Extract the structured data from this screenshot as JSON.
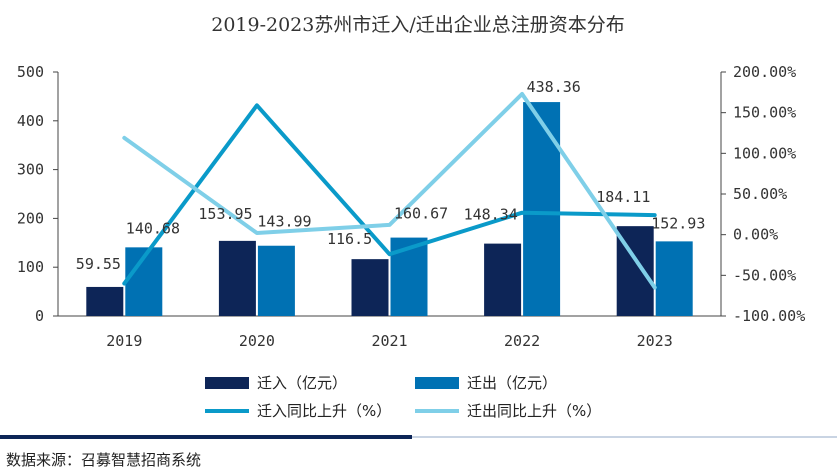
{
  "colors": {
    "in_bar": "#0d2557",
    "out_bar": "#0071b3",
    "in_line": "#0a9ac9",
    "out_line": "#7fcfe8",
    "axis": "#444444",
    "footer_dark": "#0d2557",
    "footer_light": "#c9d4e3"
  },
  "chart_data": {
    "type": "bar",
    "title": "2019-2023苏州市迁入/迁出企业总注册资本分布",
    "categories": [
      "2019",
      "2020",
      "2021",
      "2022",
      "2023"
    ],
    "series": [
      {
        "name": "迁入（亿元）",
        "kind": "bar",
        "axis": "left",
        "values": [
          59.55,
          153.95,
          116.5,
          148.34,
          184.11
        ],
        "labels": [
          "59.55",
          "153.95",
          "116.5",
          "148.34",
          "184.11"
        ]
      },
      {
        "name": "迁出（亿元）",
        "kind": "bar",
        "axis": "left",
        "values": [
          140.68,
          143.99,
          160.67,
          438.36,
          152.93
        ],
        "labels": [
          "140.68",
          "143.99",
          "160.67",
          "438.36",
          "152.93"
        ]
      },
      {
        "name": "迁入同比上升（%）",
        "kind": "line",
        "axis": "right",
        "values": [
          -60,
          159,
          -24,
          27,
          24
        ]
      },
      {
        "name": "迁出同比上升（%）",
        "kind": "line",
        "axis": "right",
        "values": [
          119,
          2,
          12,
          173,
          -65
        ]
      }
    ],
    "left_axis": {
      "min": 0,
      "max": 500,
      "ticks": [
        "0",
        "100",
        "200",
        "300",
        "400",
        "500"
      ]
    },
    "right_axis": {
      "min": -100,
      "max": 200,
      "ticks": [
        "-100.00%",
        "-50.00%",
        "0.00%",
        "50.00%",
        "100.00%",
        "150.00%",
        "200.00%"
      ]
    },
    "xlabel": "",
    "ylabel": "",
    "legend_position": "bottom"
  },
  "source_text": "数据来源：召募智慧招商系统"
}
